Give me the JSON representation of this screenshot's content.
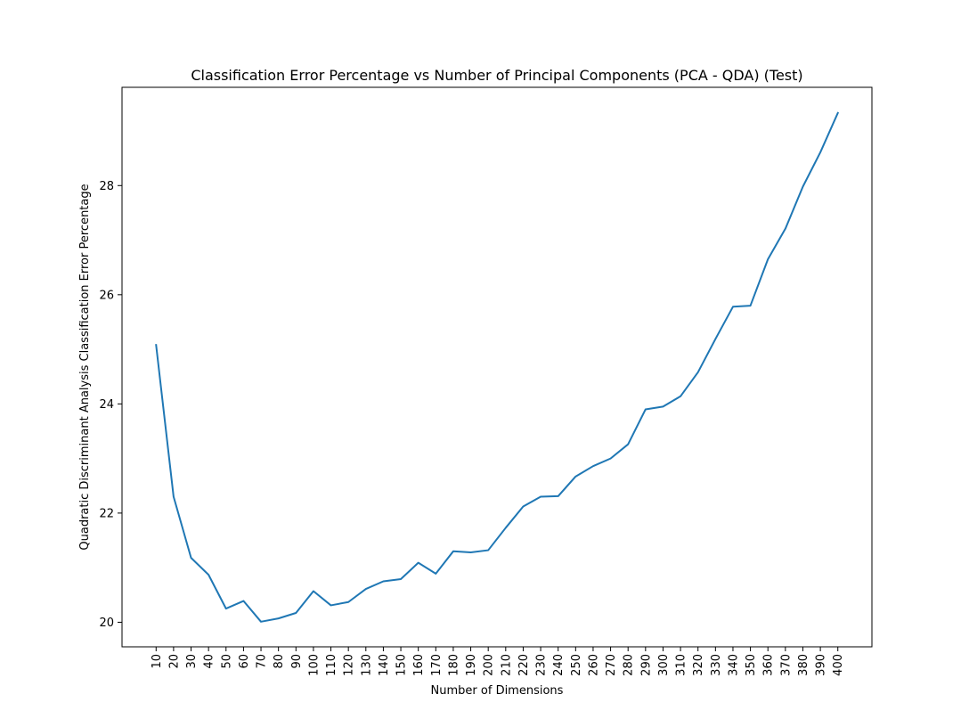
{
  "chart_data": {
    "type": "line",
    "title": "Classification Error Percentage vs Number of Principal Components (PCA - QDA) (Test)",
    "xlabel": "Number of Dimensions",
    "ylabel": "Quadratic Discriminant Analysis Classification Error Percentage",
    "x": [
      10,
      20,
      30,
      40,
      50,
      60,
      70,
      80,
      90,
      100,
      110,
      120,
      130,
      140,
      150,
      160,
      170,
      180,
      190,
      200,
      210,
      220,
      230,
      240,
      250,
      260,
      270,
      280,
      290,
      300,
      310,
      320,
      330,
      340,
      350,
      360,
      370,
      380,
      390,
      400
    ],
    "series": [
      {
        "color": "#1f77b4",
        "values": [
          25.08,
          22.3,
          21.18,
          20.87,
          20.25,
          20.39,
          20.01,
          20.07,
          20.17,
          20.57,
          20.31,
          20.37,
          20.61,
          20.75,
          20.79,
          21.09,
          20.89,
          21.3,
          21.28,
          21.32,
          21.73,
          22.12,
          22.3,
          22.31,
          22.67,
          22.86,
          23.0,
          23.26,
          23.9,
          23.95,
          24.14,
          24.58,
          25.19,
          25.78,
          25.8,
          26.65,
          27.21,
          27.98,
          28.61,
          29.33
        ]
      }
    ],
    "xticks": [
      "10",
      "20",
      "30",
      "40",
      "50",
      "60",
      "70",
      "80",
      "90",
      "100",
      "110",
      "120",
      "130",
      "140",
      "150",
      "160",
      "170",
      "180",
      "190",
      "200",
      "210",
      "220",
      "230",
      "240",
      "250",
      "260",
      "270",
      "280",
      "290",
      "300",
      "310",
      "320",
      "330",
      "340",
      "350",
      "360",
      "370",
      "380",
      "390",
      "400"
    ],
    "yticks": [
      20,
      22,
      24,
      26,
      28
    ],
    "xlim": [
      -9.5,
      419.5
    ],
    "ylim": [
      19.55,
      29.8
    ],
    "grid": false,
    "legend": "none"
  }
}
